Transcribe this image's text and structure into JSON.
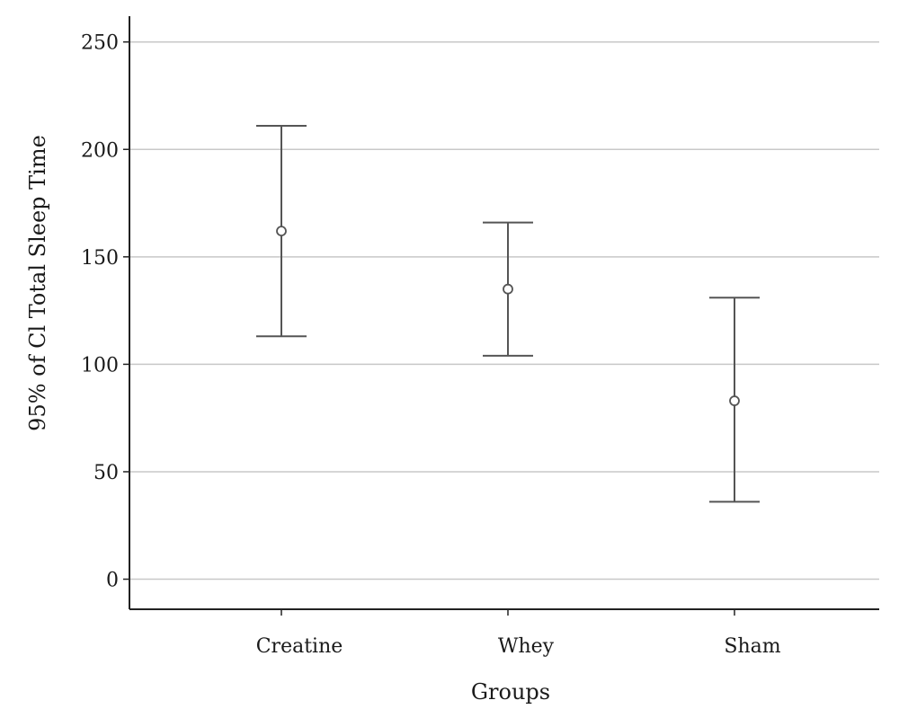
{
  "chart_data": {
    "type": "errorbar",
    "title": "",
    "xlabel": "Groups",
    "ylabel": "95% of Cl Total Sleep Time",
    "categories": [
      "Creatine",
      "Whey",
      "Sham"
    ],
    "mean": [
      162,
      135,
      83
    ],
    "lower": [
      113,
      104,
      36
    ],
    "upper": [
      211,
      166,
      131
    ],
    "ylim": [
      -14,
      262
    ],
    "yticks": [
      0,
      50,
      100,
      150,
      200,
      250
    ],
    "grid": "horizontal",
    "legend": "none",
    "colors": {
      "gridline": "#c8c8c8",
      "marks": "#555555",
      "axis": "#222222"
    }
  }
}
